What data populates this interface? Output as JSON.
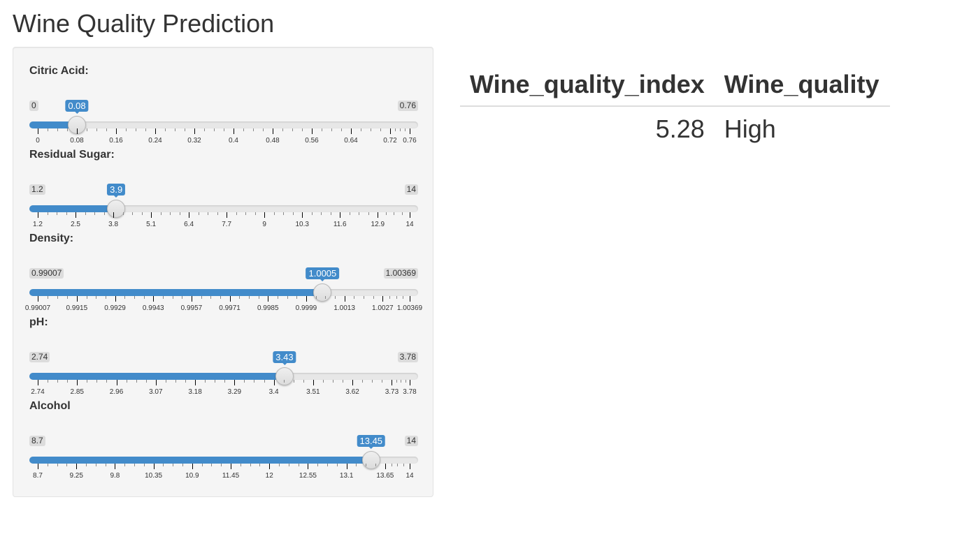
{
  "page": {
    "title": "Wine Quality Prediction"
  },
  "sliders": [
    {
      "id": "citric-acid",
      "label": "Citric Acid:",
      "min": 0,
      "max": 0.76,
      "value": 0.08,
      "min_label": "0",
      "max_label": "0.76",
      "value_label": "0.08",
      "ticks": [
        "0",
        "0.08",
        "0.16",
        "0.24",
        "0.32",
        "0.4",
        "0.48",
        "0.56",
        "0.64",
        "0.72",
        "0.76"
      ],
      "tick_values": [
        0,
        0.08,
        0.16,
        0.24,
        0.32,
        0.4,
        0.48,
        0.56,
        0.64,
        0.72,
        0.76
      ]
    },
    {
      "id": "residual-sugar",
      "label": "Residual Sugar:",
      "min": 1.2,
      "max": 14,
      "value": 3.9,
      "min_label": "1.2",
      "max_label": "14",
      "value_label": "3.9",
      "ticks": [
        "1.2",
        "2.5",
        "3.8",
        "5.1",
        "6.4",
        "7.7",
        "9",
        "10.3",
        "11.6",
        "12.9",
        "14"
      ],
      "tick_values": [
        1.2,
        2.5,
        3.8,
        5.1,
        6.4,
        7.7,
        9,
        10.3,
        11.6,
        12.9,
        14
      ]
    },
    {
      "id": "density",
      "label": "Density:",
      "min": 0.99007,
      "max": 1.00369,
      "value": 1.0005,
      "min_label": "0.99007",
      "max_label": "1.00369",
      "value_label": "1.0005",
      "ticks": [
        "0.99007",
        "0.9915",
        "0.9929",
        "0.9943",
        "0.9957",
        "0.9971",
        "0.9985",
        "0.9999",
        "1.0013",
        "1.0027",
        "1.00369"
      ],
      "tick_values": [
        0.99007,
        0.9915,
        0.9929,
        0.9943,
        0.9957,
        0.9971,
        0.9985,
        0.9999,
        1.0013,
        1.0027,
        1.00369
      ]
    },
    {
      "id": "ph",
      "label": "pH:",
      "min": 2.74,
      "max": 3.78,
      "value": 3.43,
      "min_label": "2.74",
      "max_label": "3.78",
      "value_label": "3.43",
      "ticks": [
        "2.74",
        "2.85",
        "2.96",
        "3.07",
        "3.18",
        "3.29",
        "3.4",
        "3.51",
        "3.62",
        "3.73",
        "3.78"
      ],
      "tick_values": [
        2.74,
        2.85,
        2.96,
        3.07,
        3.18,
        3.29,
        3.4,
        3.51,
        3.62,
        3.73,
        3.78
      ]
    },
    {
      "id": "alcohol",
      "label": "Alcohol",
      "min": 8.7,
      "max": 14,
      "value": 13.45,
      "min_label": "8.7",
      "max_label": "14",
      "value_label": "13.45",
      "ticks": [
        "8.7",
        "9.25",
        "9.8",
        "10.35",
        "10.9",
        "11.45",
        "12",
        "12.55",
        "13.1",
        "13.65",
        "14"
      ],
      "tick_values": [
        8.7,
        9.25,
        9.8,
        10.35,
        10.9,
        11.45,
        12,
        12.55,
        13.1,
        13.65,
        14
      ]
    }
  ],
  "result": {
    "headers": [
      "Wine_quality_index",
      "Wine_quality"
    ],
    "row": [
      "5.28",
      "High"
    ]
  },
  "colors": {
    "accent": "#428bca",
    "panel_bg": "#f5f5f5",
    "text": "#333333"
  }
}
